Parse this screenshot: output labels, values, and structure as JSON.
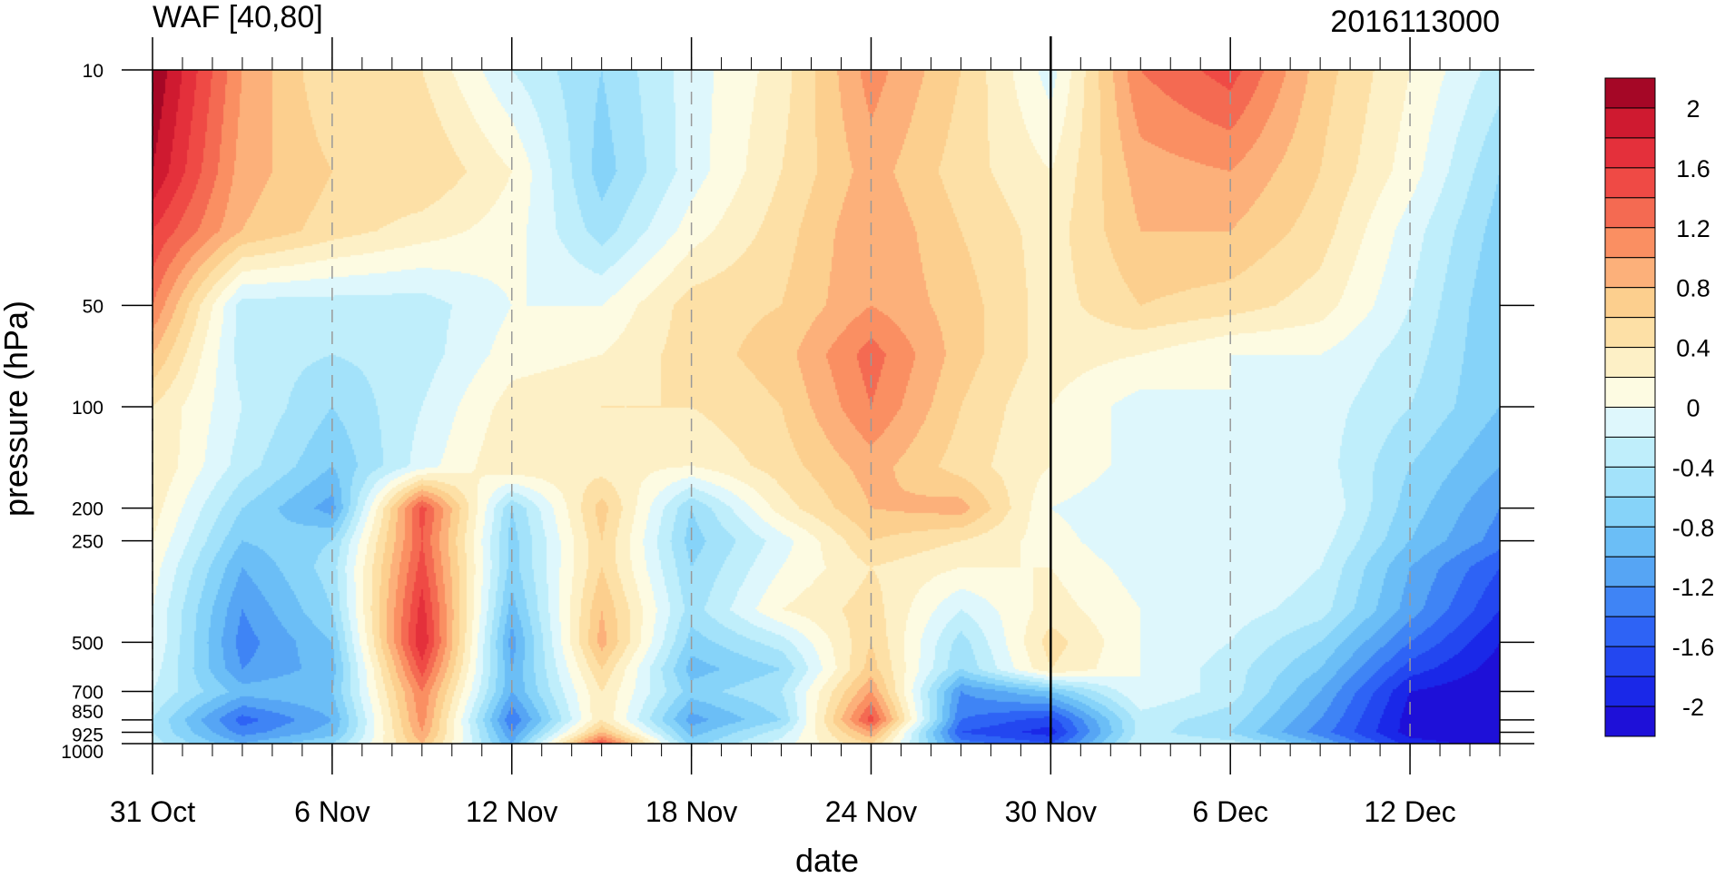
{
  "chart_data": {
    "type": "heatmap",
    "subtype": "filled-contour time-pressure cross-section",
    "title": "WAF [40,80]",
    "title_right": "2016113000",
    "xlabel": "date",
    "ylabel": "pressure (hPa)",
    "x_ticks": [
      {
        "day": 0,
        "label": "31 Oct"
      },
      {
        "day": 6,
        "label": "6 Nov"
      },
      {
        "day": 12,
        "label": "12 Nov"
      },
      {
        "day": 18,
        "label": "18 Nov"
      },
      {
        "day": 24,
        "label": "24 Nov"
      },
      {
        "day": 30,
        "label": "30 Nov"
      },
      {
        "day": 36,
        "label": "6 Dec"
      },
      {
        "day": 42,
        "label": "12 Dec"
      }
    ],
    "x_range_days": [
      0,
      45
    ],
    "x_minor_step_days": 1,
    "marker_day": 30,
    "y_scale": "log",
    "y_range_hpa": [
      1000,
      10
    ],
    "y_ticks": [
      {
        "p": 10,
        "label": "10"
      },
      {
        "p": 50,
        "label": "50"
      },
      {
        "p": 100,
        "label": "100"
      },
      {
        "p": 200,
        "label": "200"
      },
      {
        "p": 250,
        "label": "250"
      },
      {
        "p": 500,
        "label": "500"
      },
      {
        "p": 700,
        "label": "700"
      },
      {
        "p": 850,
        "label": "850"
      },
      {
        "p": 925,
        "label": "925"
      },
      {
        "p": 1000,
        "label": "1000"
      }
    ],
    "colorbar": {
      "levels": [
        -2.2,
        -2,
        -1.8,
        -1.6,
        -1.4,
        -1.2,
        -1,
        -0.8,
        -0.6,
        -0.4,
        -0.2,
        0,
        0.2,
        0.4,
        0.6,
        0.8,
        1,
        1.2,
        1.4,
        1.6,
        1.8,
        2,
        2.2
      ],
      "colors": [
        "#1e10d8",
        "#1a28e8",
        "#2347f0",
        "#2e63f5",
        "#3f84f5",
        "#56a5f4",
        "#6bbef6",
        "#86d3f9",
        "#a3e2fa",
        "#bfeefb",
        "#def7fc",
        "#fdfbe2",
        "#fdf0c6",
        "#fde0a6",
        "#fccf8e",
        "#fcb07a",
        "#fa8f62",
        "#f46a52",
        "#ef4a45",
        "#e4303b",
        "#cf1a30",
        "#a50726"
      ],
      "labels": [
        "2",
        "1.6",
        "1.2",
        "0.8",
        "0.4",
        "0",
        "-0.4",
        "-0.8",
        "-1.2",
        "-1.6",
        "-2"
      ],
      "label_values": [
        2,
        1.6,
        1.2,
        0.8,
        0.4,
        0,
        -0.4,
        -0.8,
        -1.2,
        -1.6,
        -2
      ]
    },
    "grid_days": [
      0,
      3,
      6,
      9,
      12,
      15,
      18,
      21,
      24,
      27,
      30,
      33,
      36,
      39,
      42,
      45
    ],
    "grid_pressures": [
      10,
      20,
      30,
      50,
      70,
      100,
      150,
      200,
      250,
      300,
      400,
      500,
      600,
      700,
      850,
      925,
      1000
    ],
    "values": [
      [
        2.2,
        1.0,
        0.4,
        0.4,
        -0.2,
        -0.6,
        -0.1,
        0.3,
        1.1,
        0.6,
        -0.1,
        1.2,
        1.5,
        0.7,
        0.2,
        -0.3
      ],
      [
        2.0,
        0.9,
        0.6,
        0.6,
        0.2,
        -0.7,
        -0.1,
        0.4,
        0.9,
        0.5,
        0.2,
        0.9,
        1.0,
        0.6,
        0.1,
        -0.6
      ],
      [
        1.6,
        0.8,
        0.5,
        0.3,
        0.1,
        -0.5,
        0.1,
        0.5,
        1.0,
        0.6,
        0.3,
        0.8,
        0.8,
        0.5,
        -0.1,
        -0.7
      ],
      [
        1.2,
        -0.3,
        -0.3,
        -0.3,
        0.0,
        0.0,
        0.5,
        0.6,
        1.0,
        0.7,
        0.3,
        0.6,
        0.5,
        0.3,
        -0.2,
        -0.8
      ],
      [
        0.8,
        -0.3,
        -0.4,
        -0.3,
        0.1,
        0.2,
        0.5,
        0.7,
        1.3,
        0.7,
        0.3,
        0.2,
        0.0,
        0.0,
        -0.3,
        -0.8
      ],
      [
        0.4,
        -0.2,
        -0.6,
        -0.2,
        0.3,
        0.4,
        0.4,
        0.6,
        1.2,
        0.6,
        0.2,
        -0.1,
        0.0,
        -0.1,
        -0.4,
        -0.8
      ],
      [
        0.4,
        -0.3,
        -0.8,
        -0.1,
        0.4,
        0.3,
        0.2,
        0.5,
        0.9,
        0.5,
        0.2,
        -0.1,
        0.0,
        -0.1,
        -0.6,
        -1.0
      ],
      [
        0.3,
        -0.6,
        -1.1,
        1.5,
        -0.6,
        0.7,
        -0.6,
        0.3,
        0.8,
        0.9,
        0.0,
        -0.2,
        -0.1,
        0.0,
        -0.7,
        -1.2
      ],
      [
        0.2,
        -0.8,
        -0.6,
        1.4,
        -0.7,
        0.6,
        -0.7,
        -0.1,
        0.6,
        0.4,
        0.1,
        -0.2,
        0.0,
        -0.1,
        -0.8,
        -1.3
      ],
      [
        0.1,
        -1.0,
        -0.5,
        1.5,
        -0.7,
        0.6,
        -0.6,
        0.0,
        0.4,
        0.2,
        0.2,
        -0.1,
        0.0,
        -0.2,
        -1.0,
        -1.6
      ],
      [
        0.0,
        -1.2,
        -0.6,
        1.7,
        -0.9,
        0.8,
        -0.5,
        0.2,
        0.5,
        -0.2,
        0.3,
        0.0,
        -0.1,
        -0.3,
        -1.1,
        -1.8
      ],
      [
        0.0,
        -1.3,
        -0.8,
        1.8,
        -1.1,
        0.9,
        -0.7,
        -0.3,
        0.6,
        -0.5,
        0.5,
        0.0,
        -0.2,
        -0.6,
        -1.4,
        -2.0
      ],
      [
        -0.1,
        -1.2,
        -0.9,
        1.5,
        -1.0,
        0.6,
        -0.9,
        -0.6,
        0.7,
        -0.6,
        0.4,
        0.0,
        -0.3,
        -0.8,
        -1.7,
        -2.1
      ],
      [
        -0.2,
        -0.9,
        -0.8,
        1.2,
        -1.0,
        0.4,
        -0.7,
        -0.4,
        1.0,
        -1.2,
        -0.8,
        0.0,
        -0.3,
        -1.0,
        -2.0,
        -2.2
      ],
      [
        -0.4,
        -1.5,
        -1.0,
        1.1,
        -1.4,
        0.4,
        -1.1,
        -0.6,
        1.5,
        -1.4,
        -1.7,
        -0.3,
        -0.5,
        -1.2,
        -2.1,
        -2.2
      ],
      [
        -0.4,
        -1.3,
        -0.9,
        1.0,
        -1.2,
        0.8,
        -0.9,
        -0.3,
        1.0,
        -1.6,
        -1.9,
        -0.3,
        -0.6,
        -1.3,
        -2.1,
        -2.2
      ],
      [
        -0.3,
        -1.0,
        -0.6,
        0.8,
        -1.0,
        1.5,
        -0.7,
        -0.1,
        0.6,
        -1.3,
        -1.6,
        -0.2,
        -0.3,
        -1.0,
        -1.9,
        -2.1
      ]
    ]
  }
}
